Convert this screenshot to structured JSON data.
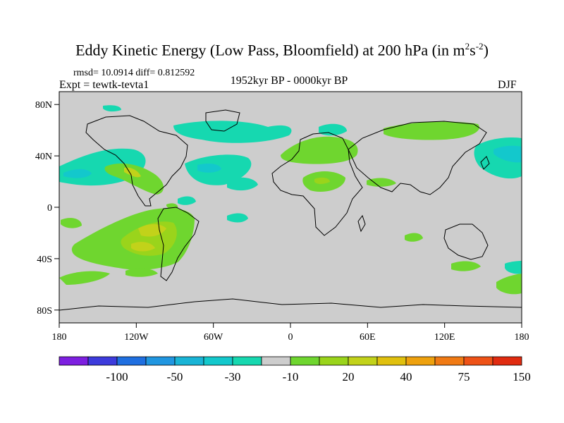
{
  "title": {
    "main": "Eddy Kinetic Energy (Low Pass, Bloomfield) at 200 hPa (in m",
    "sup1": "2",
    "mid": "s",
    "sup2": "-2",
    "close": ")"
  },
  "stats": "rmsd= 10.0914 diff= 0.812592",
  "left_label": "Expt = tewtk-tevta1",
  "center_label": "1952kyr BP - 0000kyr BP",
  "right_label": "DJF",
  "map_data": {
    "type": "contour-map",
    "projection": "cylindrical-equidistant",
    "lon_range": [
      -180,
      180
    ],
    "lat_range": [
      -90,
      90
    ],
    "lat_ticks": [
      {
        "value": 80,
        "label": "80N"
      },
      {
        "value": 40,
        "label": "40N"
      },
      {
        "value": 0,
        "label": "0"
      },
      {
        "value": -40,
        "label": "40S"
      },
      {
        "value": -80,
        "label": "80S"
      }
    ],
    "lon_ticks": [
      {
        "value": -180,
        "label": "180"
      },
      {
        "value": -120,
        "label": "120W"
      },
      {
        "value": -60,
        "label": "60W"
      },
      {
        "value": 0,
        "label": "0"
      },
      {
        "value": 60,
        "label": "60E"
      },
      {
        "value": 120,
        "label": "120E"
      },
      {
        "value": 180,
        "label": "180"
      }
    ],
    "colorbar": {
      "colors": [
        "#7d1fe0",
        "#3d3bdc",
        "#1f6fe0",
        "#2096e0",
        "#19b4d6",
        "#13c8cc",
        "#16d8b0",
        "#cdcdcd",
        "#6fd62f",
        "#9ad41b",
        "#c2d21a",
        "#e0c00e",
        "#eea10e",
        "#f07a14",
        "#ee5217",
        "#e02b10"
      ],
      "labels": [
        "-100",
        "-50",
        "-30",
        "-10",
        "20",
        "40",
        "75",
        "150"
      ]
    }
  }
}
